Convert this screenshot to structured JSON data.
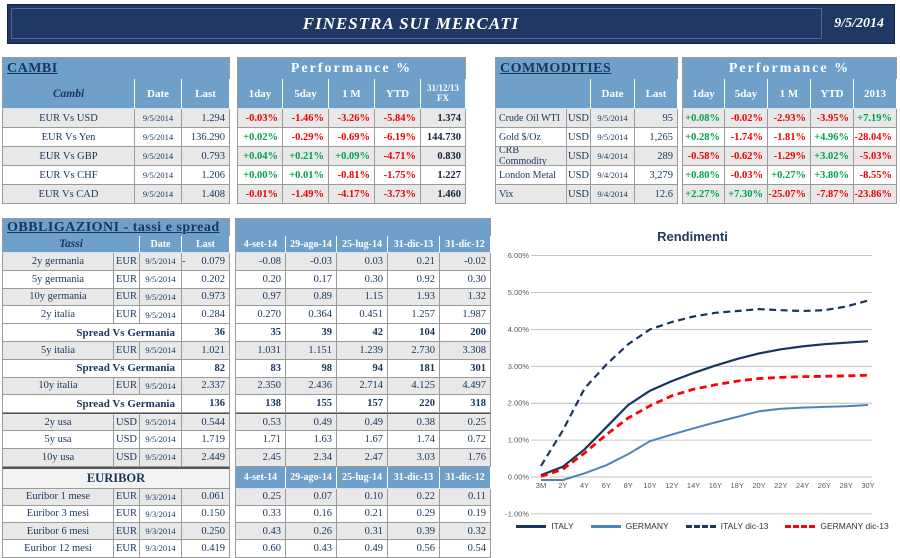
{
  "header": {
    "title": "FINESTRA SUI MERCATI",
    "date": "9/5/2014"
  },
  "colors": {
    "banner": "#1F3864",
    "header_blue": "#6FA0CA",
    "navy": "#17365D",
    "positive": "#00A14B",
    "negative": "#EE0000",
    "row_gray": "#E8E8E8"
  },
  "cambi": {
    "title": "CAMBI",
    "perf_header": "Performance  %",
    "columns": [
      "Cambi",
      "Date",
      "Last",
      "1day",
      "5day",
      "1 M",
      "YTD",
      "31/12/13 FX"
    ],
    "rows": [
      {
        "name": "EUR Vs USD",
        "date": "9/5/2014",
        "last": "1.294",
        "perf": [
          {
            "t": "-0.03%",
            "s": "neg"
          },
          {
            "t": "-1.46%",
            "s": "neg"
          },
          {
            "t": "-3.26%",
            "s": "neg"
          },
          {
            "t": "-5.84%",
            "s": "neg"
          }
        ],
        "fx": "1.374"
      },
      {
        "name": "EUR Vs Yen",
        "date": "9/5/2014",
        "last": "136.290",
        "perf": [
          {
            "t": "+0.02%",
            "s": "pos"
          },
          {
            "t": "-0.29%",
            "s": "neg"
          },
          {
            "t": "-0.69%",
            "s": "neg"
          },
          {
            "t": "-6.19%",
            "s": "neg"
          }
        ],
        "fx": "144.730"
      },
      {
        "name": "EUR Vs GBP",
        "date": "9/5/2014",
        "last": "0.793",
        "perf": [
          {
            "t": "+0.04%",
            "s": "pos"
          },
          {
            "t": "+0.21%",
            "s": "pos"
          },
          {
            "t": "+0.09%",
            "s": "pos"
          },
          {
            "t": "-4.71%",
            "s": "neg"
          }
        ],
        "fx": "0.830"
      },
      {
        "name": "EUR Vs CHF",
        "date": "9/5/2014",
        "last": "1.206",
        "perf": [
          {
            "t": "+0.00%",
            "s": "pos"
          },
          {
            "t": "+0.01%",
            "s": "pos"
          },
          {
            "t": "-0.81%",
            "s": "neg"
          },
          {
            "t": "-1.75%",
            "s": "neg"
          }
        ],
        "fx": "1.227"
      },
      {
        "name": "EUR Vs CAD",
        "date": "9/5/2014",
        "last": "1.408",
        "perf": [
          {
            "t": "-0.01%",
            "s": "neg"
          },
          {
            "t": "-1.49%",
            "s": "neg"
          },
          {
            "t": "-4.17%",
            "s": "neg"
          },
          {
            "t": "-3.73%",
            "s": "neg"
          }
        ],
        "fx": "1.460"
      }
    ]
  },
  "commodities": {
    "title": "COMMODITIES",
    "perf_header": "Performance  %",
    "columns": [
      "Date",
      "Last",
      "1day",
      "5day",
      "1 M",
      "YTD",
      "2013"
    ],
    "rows": [
      {
        "name": "Crude Oil WTI",
        "ccy": "USD",
        "date": "9/5/2014",
        "last": "95",
        "perf": [
          {
            "t": "+0.08%",
            "s": "pos"
          },
          {
            "t": "-0.02%",
            "s": "neg"
          },
          {
            "t": "-2.93%",
            "s": "neg"
          },
          {
            "t": "-3.95%",
            "s": "neg"
          },
          {
            "t": "+7.19%",
            "s": "pos"
          }
        ]
      },
      {
        "name": "Gold $/Oz",
        "ccy": "USD",
        "date": "9/5/2014",
        "last": "1,265",
        "perf": [
          {
            "t": "+0.28%",
            "s": "pos"
          },
          {
            "t": "-1.74%",
            "s": "neg"
          },
          {
            "t": "-1.81%",
            "s": "neg"
          },
          {
            "t": "+4.96%",
            "s": "pos"
          },
          {
            "t": "-28.04%",
            "s": "neg"
          }
        ]
      },
      {
        "name": "CRB Commodity",
        "ccy": "USD",
        "date": "9/4/2014",
        "last": "289",
        "perf": [
          {
            "t": "-0.58%",
            "s": "neg"
          },
          {
            "t": "-0.62%",
            "s": "neg"
          },
          {
            "t": "-1.29%",
            "s": "neg"
          },
          {
            "t": "+3.02%",
            "s": "pos"
          },
          {
            "t": "-5.03%",
            "s": "neg"
          }
        ]
      },
      {
        "name": "London Metal",
        "ccy": "USD",
        "date": "9/4/2014",
        "last": "3,279",
        "perf": [
          {
            "t": "+0.80%",
            "s": "pos"
          },
          {
            "t": "-0.03%",
            "s": "neg"
          },
          {
            "t": "+0.27%",
            "s": "pos"
          },
          {
            "t": "+3.80%",
            "s": "pos"
          },
          {
            "t": "-8.55%",
            "s": "neg"
          }
        ]
      },
      {
        "name": "Vix",
        "ccy": "USD",
        "date": "9/4/2014",
        "last": "12.6",
        "perf": [
          {
            "t": "+2.27%",
            "s": "pos"
          },
          {
            "t": "+7.30%",
            "s": "pos"
          },
          {
            "t": "-25.07%",
            "s": "neg"
          },
          {
            "t": "-7.87%",
            "s": "neg"
          },
          {
            "t": "-23.86%",
            "s": "neg"
          }
        ]
      }
    ]
  },
  "obbligazioni": {
    "title": "OBBLIGAZIONI - tassi e spread",
    "columns": [
      "Tassi",
      "Date",
      "Last"
    ],
    "date_columns": [
      "4-set-14",
      "29-ago-14",
      "25-lug-14",
      "31-dic-13",
      "31-dic-12"
    ],
    "rows": [
      {
        "type": "data",
        "shade": "g",
        "name": "2y germania",
        "ccy": "EUR",
        "date": "9/5/2014",
        "last": "-      0.079",
        "vals": [
          "-0.08",
          "-0.03",
          "0.03",
          "0.21",
          "-0.02"
        ]
      },
      {
        "type": "data",
        "shade": "w",
        "name": "5y germania",
        "ccy": "EUR",
        "date": "9/5/2014",
        "last": "0.202",
        "vals": [
          "0.20",
          "0.17",
          "0.30",
          "0.92",
          "0.30"
        ]
      },
      {
        "type": "data",
        "shade": "g",
        "name": "10y germania",
        "ccy": "EUR",
        "date": "9/5/2014",
        "last": "0.973",
        "vals": [
          "0.97",
          "0.89",
          "1.15",
          "1.93",
          "1.32"
        ]
      },
      {
        "type": "data",
        "shade": "w",
        "name": "2y italia",
        "ccy": "EUR",
        "date": "9/5/2014",
        "last": "0.284",
        "vals": [
          "0.270",
          "0.364",
          "0.451",
          "1.257",
          "1.987"
        ]
      },
      {
        "type": "spread",
        "shade": "w",
        "label": "Spread Vs Germania",
        "last": "36",
        "vals": [
          "35",
          "39",
          "42",
          "104",
          "200"
        ]
      },
      {
        "type": "data",
        "shade": "g",
        "name": "5y italia",
        "ccy": "EUR",
        "date": "9/5/2014",
        "last": "1.021",
        "vals": [
          "1.031",
          "1.151",
          "1.239",
          "2.730",
          "3.308"
        ]
      },
      {
        "type": "spread",
        "shade": "w",
        "label": "Spread Vs Germania",
        "last": "82",
        "vals": [
          "83",
          "98",
          "94",
          "181",
          "301"
        ]
      },
      {
        "type": "data",
        "shade": "g",
        "name": "10y italia",
        "ccy": "EUR",
        "date": "9/5/2014",
        "last": "2.337",
        "vals": [
          "2.350",
          "2.436",
          "2.714",
          "4.125",
          "4.497"
        ]
      },
      {
        "type": "spread",
        "shade": "w",
        "label": "Spread Vs Germania",
        "last": "136",
        "vals": [
          "138",
          "155",
          "157",
          "220",
          "318"
        ]
      },
      {
        "type": "data",
        "shade": "g",
        "sec": true,
        "name": "2y usa",
        "ccy": "USD",
        "date": "9/5/2014",
        "last": "0.544",
        "vals": [
          "0.53",
          "0.49",
          "0.49",
          "0.38",
          "0.25"
        ]
      },
      {
        "type": "data",
        "shade": "w",
        "name": "5y usa",
        "ccy": "USD",
        "date": "9/5/2014",
        "last": "1.719",
        "vals": [
          "1.71",
          "1.63",
          "1.67",
          "1.74",
          "0.72"
        ]
      },
      {
        "type": "data",
        "shade": "g",
        "name": "10y usa",
        "ccy": "USD",
        "date": "9/5/2014",
        "last": "2.449",
        "vals": [
          "2.45",
          "2.34",
          "2.47",
          "3.03",
          "1.76"
        ]
      }
    ]
  },
  "euribor": {
    "title": "EURIBOR",
    "date_columns": [
      "4-set-14",
      "29-ago-14",
      "25-lug-14",
      "31-dic-13",
      "31-dic-12"
    ],
    "rows": [
      {
        "shade": "g",
        "name": "Euribor 1 mese",
        "ccy": "EUR",
        "date": "9/3/2014",
        "last": "0.061",
        "vals": [
          "0.25",
          "0.07",
          "0.10",
          "0.22",
          "0.11"
        ]
      },
      {
        "shade": "w",
        "name": "Euribor 3 mesi",
        "ccy": "EUR",
        "date": "9/3/2014",
        "last": "0.150",
        "vals": [
          "0.33",
          "0.16",
          "0.21",
          "0.29",
          "0.19"
        ]
      },
      {
        "shade": "g",
        "name": "Euribor 6 mesi",
        "ccy": "EUR",
        "date": "9/3/2014",
        "last": "0.250",
        "vals": [
          "0.43",
          "0.26",
          "0.31",
          "0.39",
          "0.32"
        ]
      },
      {
        "shade": "w",
        "name": "Euribor 12 mesi",
        "ccy": "EUR",
        "date": "9/3/2014",
        "last": "0.419",
        "vals": [
          "0.60",
          "0.43",
          "0.49",
          "0.56",
          "0.54"
        ]
      }
    ]
  },
  "chart_data": {
    "type": "line",
    "title": "Rendimenti",
    "x_labels": [
      "3M",
      "2Y",
      "4Y",
      "6Y",
      "8Y",
      "10Y",
      "12Y",
      "14Y",
      "16Y",
      "18Y",
      "20Y",
      "22Y",
      "24Y",
      "26Y",
      "28Y",
      "30Y"
    ],
    "y_ticks": [
      {
        "label": "6.00%",
        "value": 6
      },
      {
        "label": "5.00%",
        "value": 5
      },
      {
        "label": "4.00%",
        "value": 4
      },
      {
        "label": "3.00%",
        "value": 3
      },
      {
        "label": "2.00%",
        "value": 2
      },
      {
        "label": "1.00%",
        "value": 1
      },
      {
        "label": "0.00%",
        "value": 0
      },
      {
        "label": "-1.00%",
        "value": -1
      }
    ],
    "ylim": [
      -1,
      6
    ],
    "grid": true,
    "legend_position": "bottom",
    "series": [
      {
        "name": "ITALY",
        "color": "#17365D",
        "style": "solid",
        "width": 2.2,
        "values": [
          0.05,
          0.28,
          0.75,
          1.35,
          1.95,
          2.34,
          2.6,
          2.82,
          3.02,
          3.2,
          3.35,
          3.46,
          3.54,
          3.6,
          3.64,
          3.68
        ]
      },
      {
        "name": "GERMANY",
        "color": "#4F81BD",
        "style": "solid",
        "width": 2,
        "values": [
          -0.08,
          -0.08,
          0.1,
          0.32,
          0.62,
          0.97,
          1.15,
          1.32,
          1.48,
          1.63,
          1.78,
          1.85,
          1.88,
          1.9,
          1.92,
          1.95
        ]
      },
      {
        "name": "ITALY dic-13",
        "color": "#17365D",
        "style": "dashed",
        "width": 2.2,
        "values": [
          0.3,
          1.26,
          2.4,
          3.05,
          3.6,
          4.0,
          4.2,
          4.35,
          4.45,
          4.5,
          4.55,
          4.52,
          4.5,
          4.52,
          4.62,
          4.78
        ]
      },
      {
        "name": "GERMANY dic-13",
        "color": "#FF0000",
        "style": "dashed",
        "width": 2.8,
        "values": [
          0.02,
          0.21,
          0.65,
          1.15,
          1.6,
          1.93,
          2.2,
          2.38,
          2.5,
          2.6,
          2.67,
          2.7,
          2.72,
          2.73,
          2.74,
          2.76
        ]
      }
    ]
  }
}
